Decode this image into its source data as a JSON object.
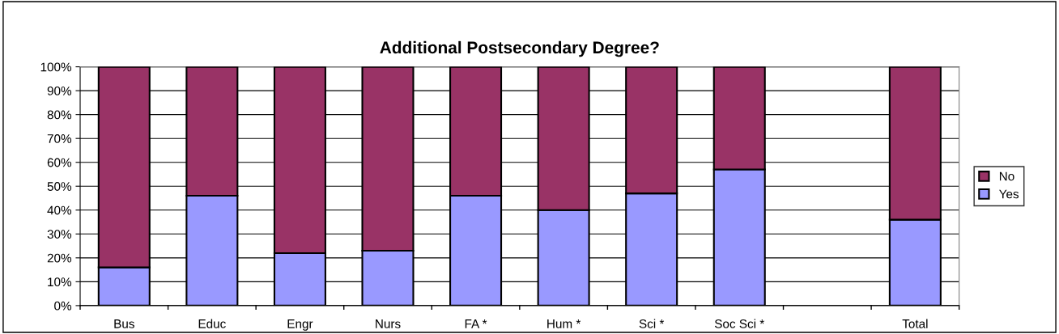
{
  "chart_data": {
    "type": "bar",
    "title": "Additional Postsecondary Degree?",
    "stacked": true,
    "categories": [
      "Bus",
      "Educ",
      "Engr",
      "Nurs",
      "FA *",
      "Hum *",
      "Sci *",
      "Soc Sci *",
      null,
      "Total"
    ],
    "series": [
      {
        "name": "Yes",
        "color": "#9999ff",
        "values": [
          16,
          46,
          22,
          23,
          46,
          40,
          47,
          57,
          null,
          36
        ]
      },
      {
        "name": "No",
        "color": "#993366",
        "values": [
          84,
          54,
          78,
          77,
          54,
          60,
          53,
          43,
          null,
          64
        ]
      }
    ],
    "ylim": [
      0,
      100
    ],
    "yticks": [
      {
        "value": 0,
        "label": "0%"
      },
      {
        "value": 10,
        "label": "10%"
      },
      {
        "value": 20,
        "label": "20%"
      },
      {
        "value": 30,
        "label": "30%"
      },
      {
        "value": 40,
        "label": "40%"
      },
      {
        "value": 50,
        "label": "50%"
      },
      {
        "value": 60,
        "label": "60%"
      },
      {
        "value": 70,
        "label": "70%"
      },
      {
        "value": 80,
        "label": "80%"
      },
      {
        "value": 90,
        "label": "90%"
      },
      {
        "value": 100,
        "label": "100%"
      }
    ],
    "grid": "y",
    "legend": "right"
  }
}
